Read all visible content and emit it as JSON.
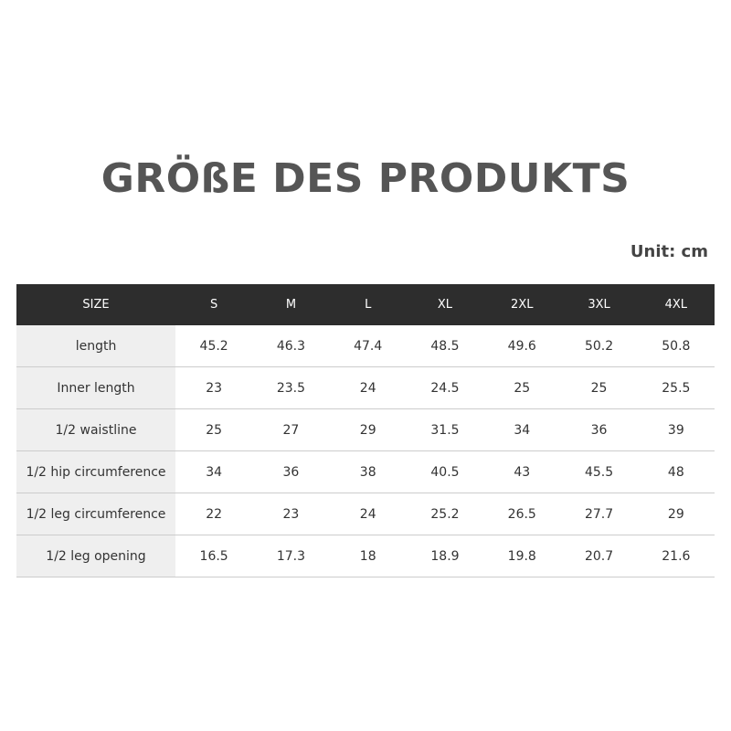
{
  "title": "GRÖßE DES PRODUKTS",
  "unit": "Unit: cm",
  "table": {
    "header": [
      "SIZE",
      "S",
      "M",
      "L",
      "XL",
      "2XL",
      "3XL",
      "4XL"
    ],
    "rows": [
      {
        "label": "length",
        "values": [
          "45.2",
          "46.3",
          "47.4",
          "48.5",
          "49.6",
          "50.2",
          "50.8"
        ]
      },
      {
        "label": "Inner length",
        "values": [
          "23",
          "23.5",
          "24",
          "24.5",
          "25",
          "25",
          "25.5"
        ]
      },
      {
        "label": "1/2 waistline",
        "values": [
          "25",
          "27",
          "29",
          "31.5",
          "34",
          "36",
          "39"
        ]
      },
      {
        "label": "1/2 hip circumference",
        "values": [
          "34",
          "36",
          "38",
          "40.5",
          "43",
          "45.5",
          "48"
        ]
      },
      {
        "label": "1/2 leg circumference",
        "values": [
          "22",
          "23",
          "24",
          "25.2",
          "26.5",
          "27.7",
          "29"
        ]
      },
      {
        "label": "1/2 leg opening",
        "values": [
          "16.5",
          "17.3",
          "18",
          "18.9",
          "19.8",
          "20.7",
          "21.6"
        ]
      }
    ]
  }
}
